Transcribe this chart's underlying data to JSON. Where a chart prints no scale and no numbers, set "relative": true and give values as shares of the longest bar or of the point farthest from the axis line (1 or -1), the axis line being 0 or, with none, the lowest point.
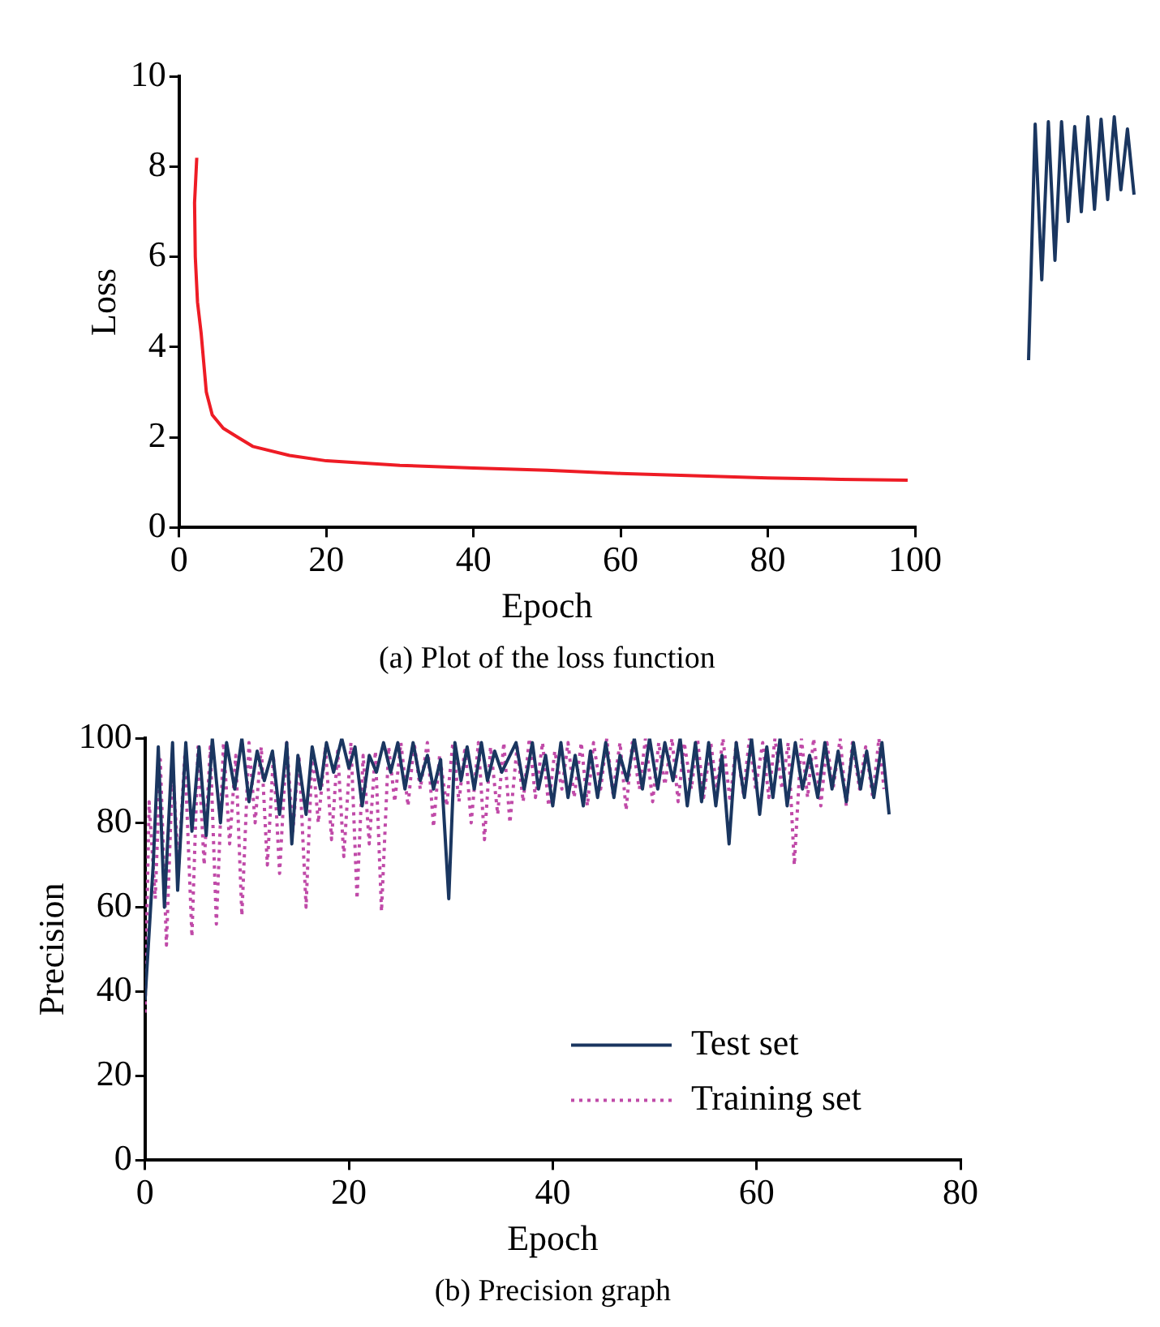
{
  "chart_data": [
    {
      "type": "line",
      "xlabel": "Epoch",
      "ylabel": "Loss",
      "annotations": [
        "(a) Plot of the loss function"
      ],
      "xlim": [
        0,
        100
      ],
      "xticks": [
        0,
        20,
        40,
        60,
        80,
        100
      ],
      "ylim": [
        0,
        10
      ],
      "yticks": [
        0,
        2,
        4,
        6,
        8,
        10
      ],
      "grid": false,
      "marker": "none",
      "line_style": "solid",
      "series": [
        {
          "color": "#ee1c25",
          "x": [
            2.4,
            2.1,
            2.2,
            2.5,
            3,
            3.7,
            4.5,
            6,
            8,
            10,
            15,
            20,
            30,
            40,
            50,
            60,
            70,
            80,
            90,
            99
          ],
          "values": [
            8.2,
            7.2,
            6,
            5,
            4.3,
            3,
            2.5,
            2.2,
            2,
            1.8,
            1.6,
            1.48,
            1.38,
            1.32,
            1.27,
            1.2,
            1.15,
            1.1,
            1.07,
            1.05
          ]
        }
      ]
    },
    {
      "type": "line",
      "xlabel": "Epoch",
      "ylabel": "Precision",
      "annotations": [
        "(b) Precision graph"
      ],
      "xlim": [
        0,
        80
      ],
      "xticks": [
        0,
        20,
        40,
        60,
        80
      ],
      "ylim": [
        0,
        100
      ],
      "yticks": [
        0,
        20,
        40,
        60,
        80,
        100
      ],
      "grid": false,
      "marker": "none",
      "legend": "bottom right",
      "series": [
        {
          "name": "Test set",
          "color": "#1a3660",
          "line_style": "solid",
          "x": [
            0,
            0.8,
            1.3,
            1.9,
            2.7,
            3.2,
            4,
            4.6,
            5.3,
            6,
            6.6,
            7.4,
            8,
            8.8,
            9.5,
            10.2,
            11,
            11.7,
            12.5,
            13.2,
            13.9,
            14.4,
            15,
            15.8,
            16.4,
            17.2,
            17.8,
            18.5,
            19.3,
            20,
            20.6,
            21.3,
            22,
            22.7,
            23.4,
            24.1,
            24.8,
            25.5,
            26.3,
            27,
            27.7,
            28.3,
            29,
            29.8,
            30.4,
            31,
            31.6,
            32.3,
            33,
            33.6,
            34.3,
            35,
            36.4,
            37.2,
            38,
            38.6,
            39.3,
            40,
            40.8,
            41.5,
            42.2,
            43,
            43.7,
            44.4,
            45.2,
            46,
            46.6,
            47.3,
            48,
            48.8,
            49.5,
            50.3,
            51,
            51.8,
            52.5,
            53.2,
            54,
            54.6,
            55.3,
            56,
            56.6,
            57.3,
            58,
            58.8,
            59.5,
            60.3,
            61,
            61.6,
            62.3,
            63,
            63.8,
            64.5,
            65.2,
            66,
            66.7,
            67.4,
            68,
            68.8,
            69.5,
            70.2,
            70.8,
            71.5,
            72.3,
            73
          ],
          "values": [
            38,
            70,
            98,
            60,
            99,
            64,
            99,
            78,
            98,
            77,
            100,
            80,
            99,
            88,
            100,
            85,
            97,
            90,
            97,
            82,
            99,
            75,
            96,
            82,
            98,
            88,
            99,
            92,
            100,
            93,
            98,
            84,
            96,
            92,
            99,
            92,
            99,
            88,
            99,
            90,
            96,
            88,
            95,
            62,
            99,
            90,
            98,
            88,
            99,
            90,
            97,
            92,
            99,
            88,
            99,
            88,
            96,
            84,
            99,
            86,
            96,
            84,
            97,
            86,
            99,
            86,
            96,
            90,
            100,
            88,
            100,
            88,
            99,
            90,
            100,
            84,
            99,
            85,
            99,
            84,
            96,
            75,
            99,
            86,
            100,
            82,
            98,
            86,
            100,
            84,
            99,
            88,
            96,
            86,
            99,
            88,
            97,
            85,
            99,
            88,
            97,
            86,
            99,
            82
          ]
        },
        {
          "name": "Training set",
          "color": "#c04aa8",
          "line_style": "dotted",
          "x": [
            0,
            0.4,
            1,
            1.5,
            2.1,
            2.7,
            3.3,
            3.9,
            4.6,
            5.2,
            5.8,
            6.4,
            7,
            7.7,
            8.3,
            8.9,
            9.5,
            10.2,
            10.8,
            11.4,
            12,
            12.6,
            13.2,
            13.9,
            14.5,
            15.1,
            15.8,
            16.4,
            17,
            17.7,
            18.3,
            18.9,
            19.5,
            20.2,
            20.8,
            21.4,
            22,
            22.6,
            23.2,
            23.9,
            24.5,
            25.1,
            25.8,
            26.4,
            27,
            27.7,
            28.3,
            28.9,
            29.6,
            30.2,
            30.8,
            31.4,
            32,
            32.7,
            33.3,
            33.9,
            34.6,
            35.2,
            35.8,
            36.5,
            37.1,
            37.7,
            38.3,
            39,
            39.6,
            40.2,
            40.9,
            41.5,
            42.1,
            42.8,
            43.4,
            44,
            44.7,
            45.3,
            45.9,
            46.6,
            47.2,
            47.8,
            48.5,
            49.1,
            49.8,
            50.4,
            51,
            51.7,
            52.3,
            52.9,
            53.6,
            54.2,
            54.8,
            55.5,
            56.1,
            56.7,
            57.4,
            58,
            58.7,
            59.3,
            59.9,
            60.6,
            61.2,
            61.8,
            62.5,
            63.1,
            63.7,
            64.4,
            65,
            65.6,
            66.3,
            66.9,
            67.5,
            68.2,
            68.8,
            69.4,
            70.1,
            70.7,
            71.4,
            72,
            72.5
          ],
          "values": [
            35,
            85,
            62,
            95,
            51,
            93,
            70,
            96,
            53,
            98,
            70,
            98,
            56,
            99,
            75,
            96,
            58,
            99,
            80,
            98,
            70,
            96,
            68,
            99,
            78,
            96,
            60,
            97,
            80,
            98,
            76,
            97,
            72,
            99,
            62,
            96,
            75,
            97,
            59,
            98,
            85,
            99,
            84,
            99,
            88,
            99,
            79,
            96,
            84,
            99,
            85,
            98,
            80,
            99,
            76,
            98,
            82,
            99,
            80,
            98,
            85,
            100,
            86,
            99,
            84,
            97,
            88,
            99,
            86,
            99,
            84,
            99,
            88,
            100,
            87,
            99,
            83,
            99,
            88,
            100,
            85,
            99,
            89,
            100,
            85,
            99,
            88,
            100,
            86,
            99,
            88,
            100,
            85,
            99,
            87,
            100,
            88,
            99,
            86,
            100,
            88,
            99,
            70,
            100,
            86,
            100,
            84,
            99,
            88,
            100,
            84,
            99,
            88,
            98,
            86,
            100,
            88
          ]
        }
      ]
    },
    {
      "type": "line",
      "relative": true,
      "marker": "none",
      "categories": [
        null,
        null,
        null,
        null,
        null,
        null,
        null,
        null,
        null,
        null,
        null,
        null,
        null,
        null,
        null,
        null,
        null
      ],
      "series": [
        {
          "color": "#1a3660",
          "values": [
            0,
            0.97,
            0.33,
            0.98,
            0.41,
            0.98,
            0.57,
            0.96,
            0.61,
            1,
            0.62,
            0.99,
            0.66,
            1,
            0.7,
            0.95,
            0.68
          ]
        }
      ]
    }
  ]
}
